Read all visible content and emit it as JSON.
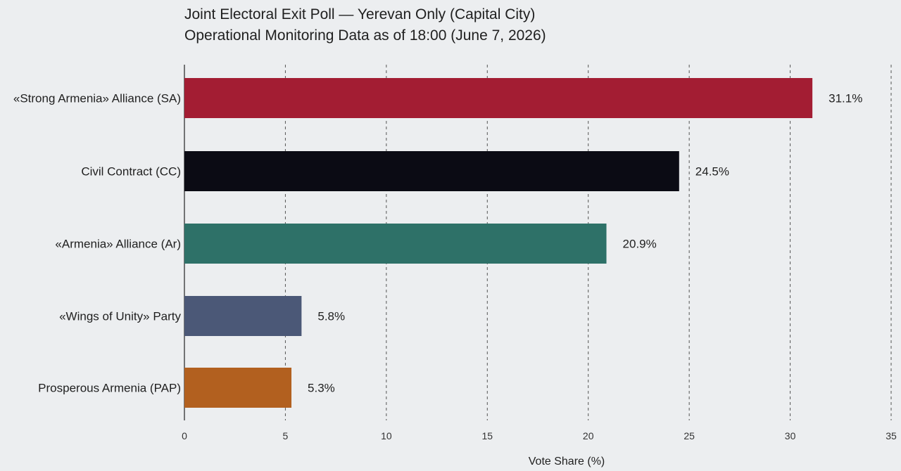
{
  "title_lines": [
    "Joint Electoral Exit Poll — Yerevan Only (Capital City)",
    "Operational Monitoring Data as of 18:00 (June 7, 2026)"
  ],
  "chart_data": {
    "type": "bar",
    "orientation": "horizontal",
    "categories": [
      "«Strong Armenia» Alliance (SA)",
      "Civil Contract (CC)",
      "«Armenia» Alliance (Ar)",
      "«Wings of Unity» Party",
      "Prosperous Armenia (PAP)"
    ],
    "values": [
      31.1,
      24.5,
      20.9,
      5.8,
      5.3
    ],
    "value_labels": [
      "31.1%",
      "24.5%",
      "20.9%",
      "5.8%",
      "5.3%"
    ],
    "colors": [
      "#a31d33",
      "#0b0b14",
      "#2e7168",
      "#4b5877",
      "#b2601f"
    ],
    "xlabel": "Vote Share (%)",
    "ylabel": "",
    "xlim": [
      0,
      35
    ],
    "xticks": [
      0,
      5,
      10,
      15,
      20,
      25,
      30,
      35
    ],
    "xtick_labels": [
      "0",
      "5",
      "10",
      "15",
      "20",
      "25",
      "30",
      "35"
    ],
    "grid": "vertical dashed"
  }
}
